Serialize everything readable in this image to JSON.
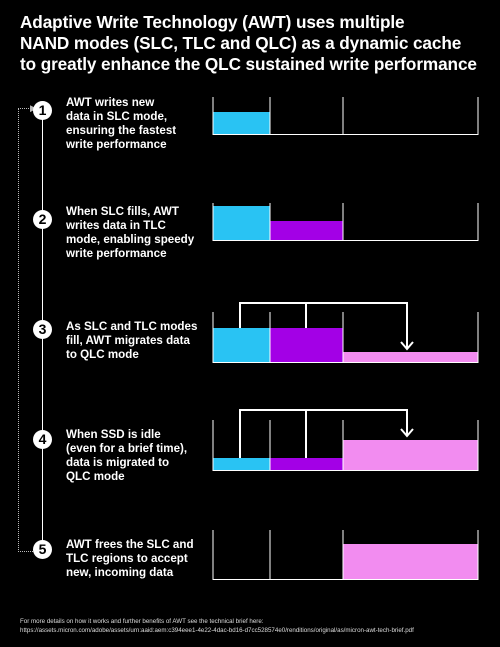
{
  "title_lines": [
    "Adaptive Write Technology (AWT) uses multiple",
    "NAND modes (SLC, TLC and QLC) as a dynamic cache",
    "to greatly enhance the QLC sustained write performance"
  ],
  "steps": [
    {
      "number": "1",
      "lines": [
        "AWT writes new",
        "data in SLC mode,",
        "ensuring the fastest",
        "write performance"
      ]
    },
    {
      "number": "2",
      "lines": [
        "When SLC fills, AWT",
        "writes data in TLC",
        "mode, enabling speedy",
        "write performance"
      ]
    },
    {
      "number": "3",
      "lines": [
        "As SLC and TLC modes",
        "fill, AWT migrates data",
        "to QLC mode"
      ]
    },
    {
      "number": "4",
      "lines": [
        "When SSD is idle",
        "(even for a brief time),",
        "data is migrated to",
        "QLC mode"
      ]
    },
    {
      "number": "5",
      "lines": [
        "AWT frees the SLC and",
        "TLC regions to accept",
        "new, incoming data"
      ]
    }
  ],
  "colors": {
    "slc": "#29c3f3",
    "tlc": "#a300e6",
    "qlc": "#f28cf0",
    "background": "#000000",
    "line": "#ffffff"
  },
  "footer_lines": [
    "For more details on how it works and further benefits of AWT see the technical brief here:",
    "https://assets.micron.com/adobe/assets/urn:aaid:aem:c394eee1-4e22-4dac-bd16-d7cc528574e0/renditions/original/as/micron-awt-tech-brief.pdf"
  ]
}
